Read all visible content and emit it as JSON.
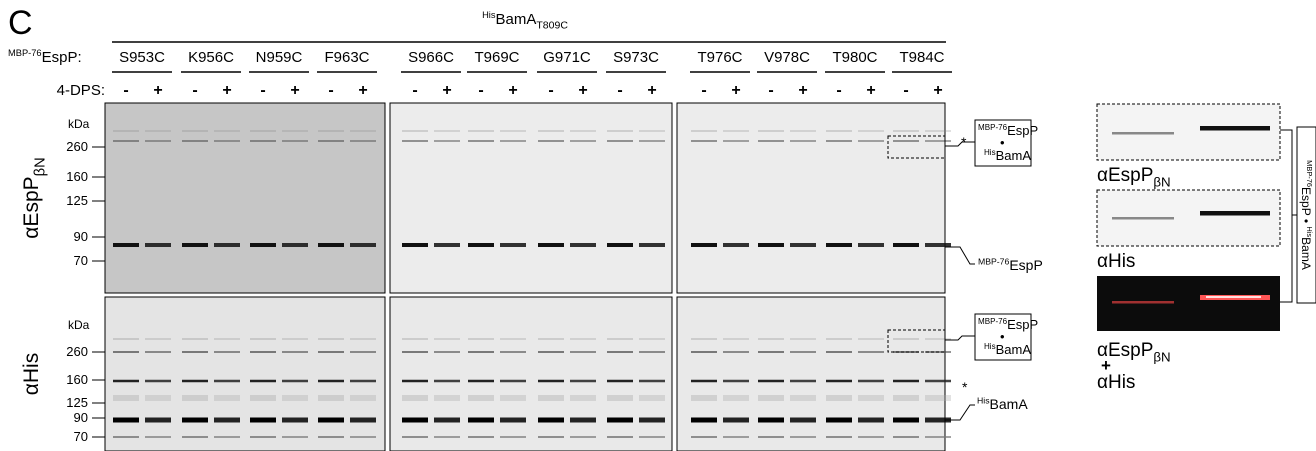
{
  "panel_letter": "C",
  "header": {
    "sup": "His",
    "main": "BamA",
    "sub": "T809C"
  },
  "construct_label": {
    "sup": "MBP-76",
    "main": "EspP:"
  },
  "mutants": [
    "S953C",
    "K956C",
    "N959C",
    "F963C",
    "S966C",
    "T969C",
    "G971C",
    "S973C",
    "T976C",
    "V978C",
    "T980C",
    "T984C"
  ],
  "treatment_label": "4-DPS:",
  "treatment": [
    "-",
    "+",
    "-",
    "+",
    "-",
    "+",
    "-",
    "+",
    "-",
    "+",
    "-",
    "+",
    "-",
    "+",
    "-",
    "+",
    "-",
    "+",
    "-",
    "+",
    "-",
    "+",
    "-",
    "+"
  ],
  "blots": [
    {
      "antibody": {
        "main": "αEspP",
        "sub": "βN"
      },
      "unit": "kDa",
      "markers": [
        260,
        160,
        125,
        90,
        70
      ],
      "star": "*",
      "complex": {
        "line1": {
          "sup": "MBP-76",
          "main": "EspP"
        },
        "dot": "•",
        "line2": {
          "sup": "His",
          "main": "BamA"
        }
      },
      "band_label": {
        "sup": "MBP-76",
        "main": "EspP"
      }
    },
    {
      "antibody": {
        "main": "αHis"
      },
      "unit": "kDa",
      "markers": [
        260,
        160,
        125,
        90,
        70
      ],
      "star": "*",
      "complex": {
        "line1": {
          "sup": "MBP-76",
          "main": "EspP"
        },
        "dot": "•",
        "line2": {
          "sup": "His",
          "main": "BamA"
        }
      },
      "band_label": {
        "sup": "His",
        "main": "BamA"
      }
    }
  ],
  "inset": {
    "labels": [
      {
        "main": "αEspP",
        "sub": "βN"
      },
      {
        "main": "αHis"
      }
    ],
    "merge": {
      "green": {
        "main": "αEspP",
        "sub": "βN"
      },
      "plus": "+",
      "red": "αHis"
    },
    "side_label": {
      "sup1": "MBP-76",
      "main1": "EspP • ",
      "sup2": "His",
      "main2": "BamA"
    }
  }
}
